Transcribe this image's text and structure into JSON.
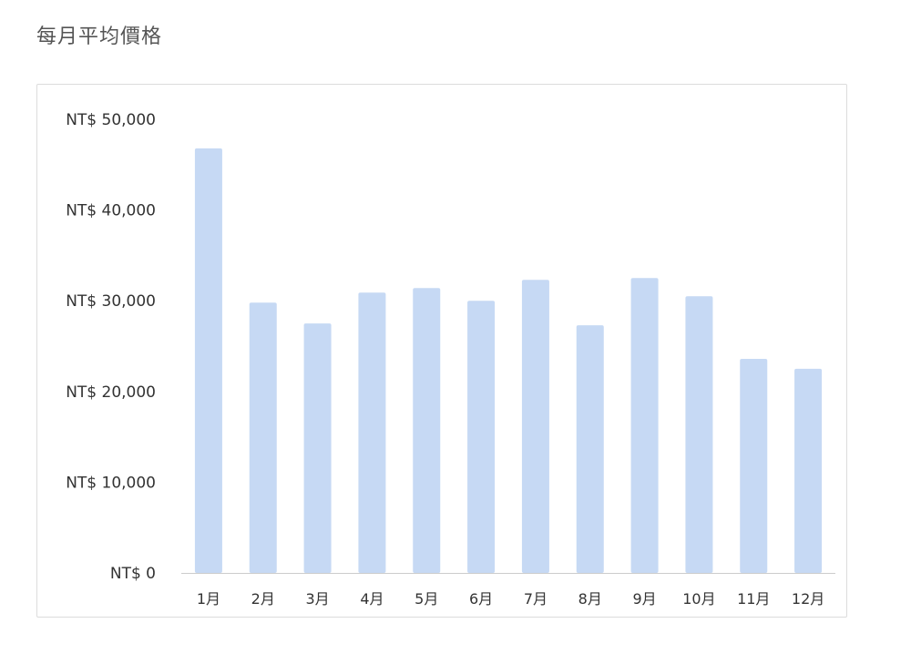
{
  "page": {
    "title": "每月平均價格"
  },
  "chart_data": {
    "type": "bar",
    "title": "",
    "xlabel": "",
    "ylabel": "",
    "categories": [
      "1月",
      "2月",
      "3月",
      "4月",
      "5月",
      "6月",
      "7月",
      "8月",
      "9月",
      "10月",
      "11月",
      "12月"
    ],
    "values": [
      46800,
      29800,
      27500,
      30900,
      31400,
      30000,
      32300,
      27300,
      32500,
      30500,
      23600,
      22500
    ],
    "ylim": [
      0,
      50000
    ],
    "yticks": [
      0,
      10000,
      20000,
      30000,
      40000,
      50000
    ],
    "ytick_labels": [
      "NT$ 0",
      "NT$ 10,000",
      "NT$ 20,000",
      "NT$ 30,000",
      "NT$ 40,000",
      "NT$ 50,000"
    ],
    "grid": false,
    "legend": "none",
    "bar_color": "#c6d9f4",
    "baseline_color": "#cccccc"
  }
}
